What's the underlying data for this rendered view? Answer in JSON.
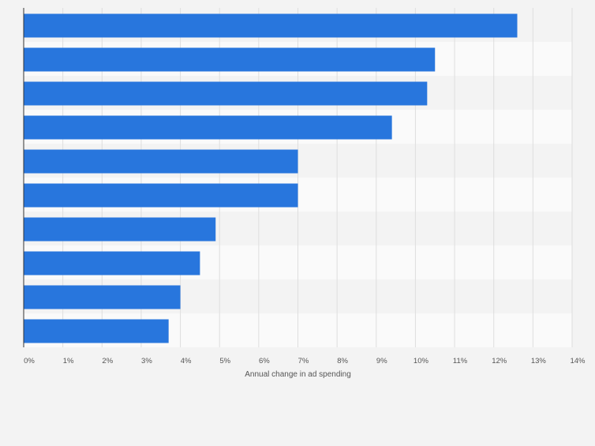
{
  "chart_data": {
    "type": "bar",
    "orientation": "horizontal",
    "title": "",
    "xlabel": "Annual change in ad spending",
    "ylabel": "",
    "categories": [
      "",
      "",
      "",
      "",
      "",
      "",
      "",
      "",
      "",
      ""
    ],
    "values": [
      12.6,
      10.5,
      10.3,
      9.4,
      7.0,
      7.0,
      4.9,
      4.5,
      4.0,
      3.7
    ],
    "xlim": [
      0,
      14
    ],
    "x_ticks": [
      "0%",
      "1%",
      "2%",
      "3%",
      "4%",
      "5%",
      "6%",
      "7%",
      "8%",
      "9%",
      "10%",
      "11%",
      "12%",
      "13%",
      "14%"
    ],
    "grid": true,
    "legend": "none",
    "colors": {
      "bar": "#2876dd",
      "background": "#f3f3f3",
      "band_light": "#fafafa",
      "band_dark": "#f3f3f3",
      "gridline": "#dedede",
      "axis": "#333333",
      "text": "#555555"
    }
  }
}
